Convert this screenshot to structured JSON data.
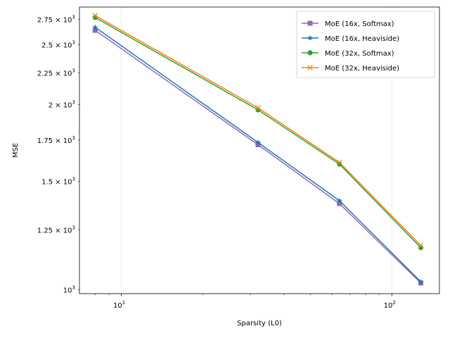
{
  "chart_data": {
    "type": "line",
    "title": "",
    "xlabel": "Sparsity (L0)",
    "ylabel": "MSE",
    "xscale": "log",
    "yscale": "log",
    "xlim": [
      7,
      150
    ],
    "ylim": [
      985,
      2880
    ],
    "grid": "x-major only",
    "legend_position": "top-right",
    "x_ticks": [
      {
        "value": 10,
        "base": "10",
        "exp": "1"
      },
      {
        "value": 100,
        "base": "10",
        "exp": "2"
      }
    ],
    "y_ticks": [
      {
        "value": 1000,
        "mant": "",
        "base": "10",
        "exp": "3"
      },
      {
        "value": 1250,
        "mant": "1.25 × ",
        "base": "10",
        "exp": "3"
      },
      {
        "value": 1500,
        "mant": "1.5 × ",
        "base": "10",
        "exp": "3"
      },
      {
        "value": 1750,
        "mant": "1.75 × ",
        "base": "10",
        "exp": "3"
      },
      {
        "value": 2000,
        "mant": "2 × ",
        "base": "10",
        "exp": "3"
      },
      {
        "value": 2250,
        "mant": "2.25 × ",
        "base": "10",
        "exp": "3"
      },
      {
        "value": 2500,
        "mant": "2.5 × ",
        "base": "10",
        "exp": "3"
      },
      {
        "value": 2750,
        "mant": "2.75 × ",
        "base": "10",
        "exp": "3"
      }
    ],
    "x": [
      8,
      32,
      64,
      128
    ],
    "series": [
      {
        "name": "MoE (16x, Softmax)",
        "color": "#9467bd",
        "marker": "square",
        "values": [
          2640,
          1720,
          1380,
          1025
        ]
      },
      {
        "name": "MoE (16x, Heaviside)",
        "color": "#1f77b4",
        "marker": "star",
        "values": [
          2670,
          1735,
          1395,
          1030
        ]
      },
      {
        "name": "MoE (32x, Softmax)",
        "color": "#2ca02c",
        "marker": "circle",
        "values": [
          2770,
          1960,
          1600,
          1170
        ]
      },
      {
        "name": "MoE (32x, Heaviside)",
        "color": "#ff7f0e",
        "marker": "x",
        "values": [
          2790,
          1975,
          1610,
          1180
        ]
      }
    ]
  }
}
